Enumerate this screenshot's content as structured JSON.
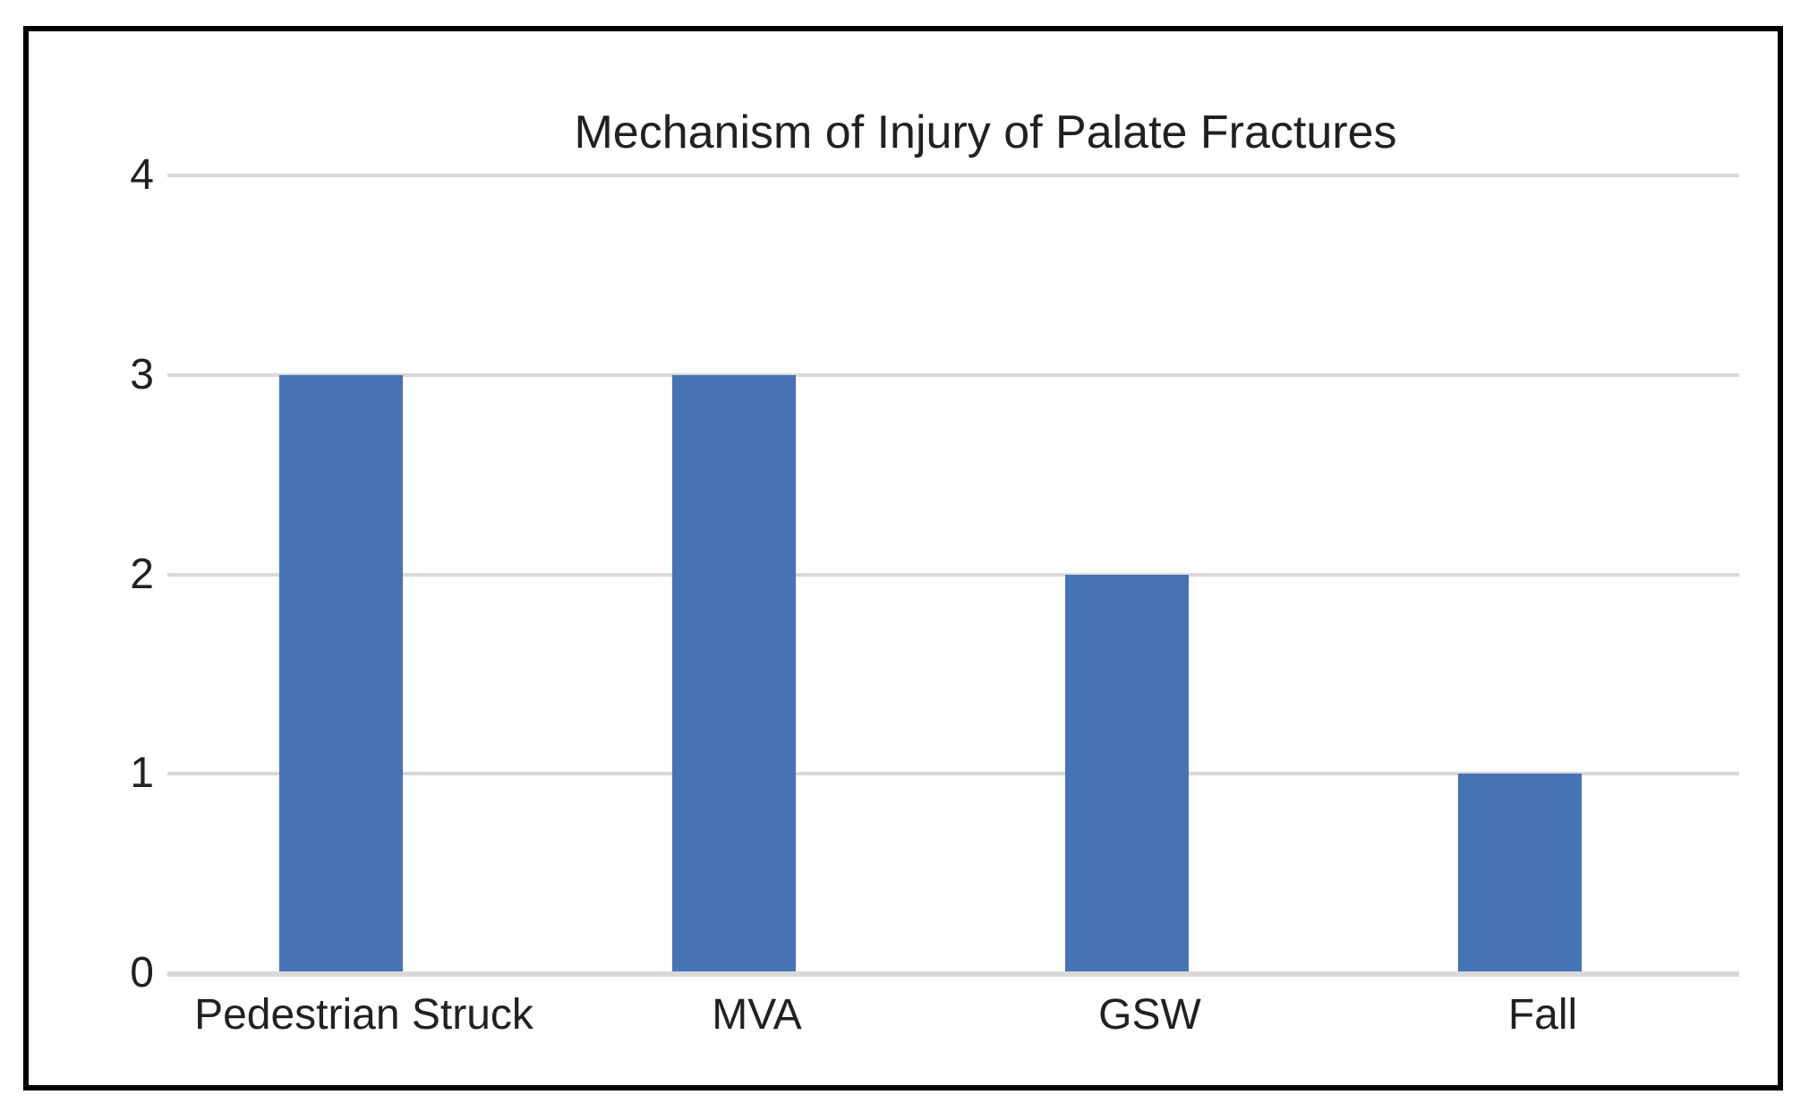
{
  "page": {
    "background": "#FFFFFF",
    "frame_border_color": "#000000"
  },
  "chart_data": {
    "type": "bar",
    "title": "Mechanism of Injury of Palate Fractures",
    "categories": [
      "Pedestrian Struck",
      "MVA",
      "GSW",
      "Fall"
    ],
    "values": [
      3,
      3,
      2,
      1
    ],
    "xlabel": "",
    "ylabel": "",
    "ylim": [
      0,
      4
    ],
    "yticks": [
      4,
      3,
      2,
      1,
      0
    ],
    "grid": true,
    "legend": false,
    "bar_color": "#4673B5",
    "gridline_color": "#D9D9D9",
    "axis_line_color": "#D9D9D9",
    "text_color": "#212121"
  }
}
